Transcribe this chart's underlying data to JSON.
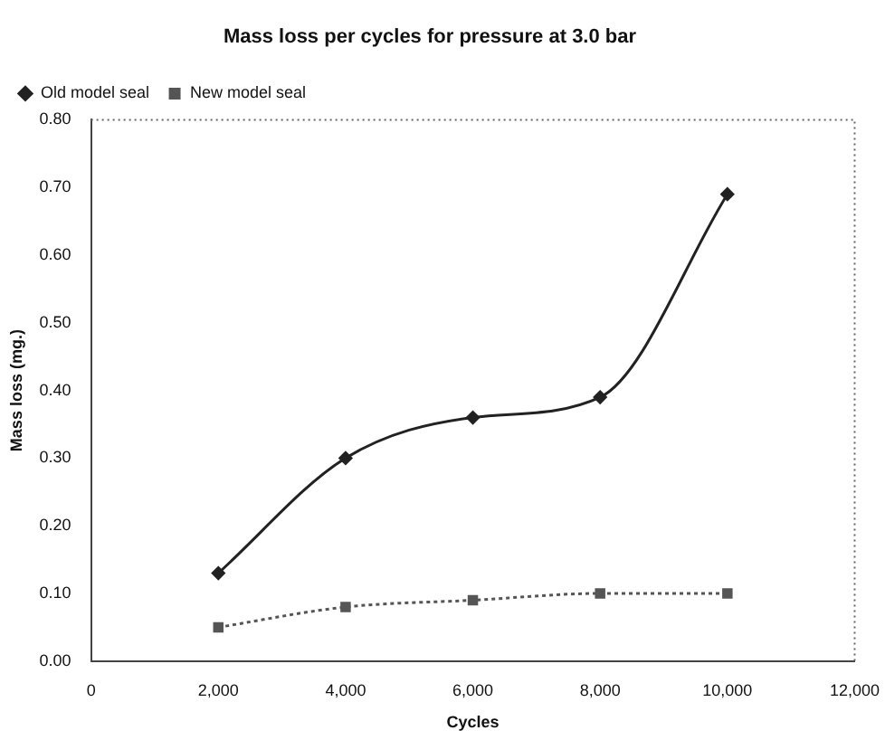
{
  "chart_data": {
    "type": "line",
    "title": "Mass loss per cycles for pressure at 3.0 bar",
    "xlabel": "Cycles",
    "ylabel": "Mass loss (mg.)",
    "x": [
      2000,
      4000,
      6000,
      8000,
      10000
    ],
    "series": [
      {
        "name": "Old model seal",
        "color": "#222222",
        "values": [
          0.13,
          0.3,
          0.36,
          0.39,
          0.69
        ],
        "marker": "diamond",
        "line_style": "solid"
      },
      {
        "name": "New model seal",
        "color": "#555555",
        "values": [
          0.05,
          0.08,
          0.09,
          0.1,
          0.1
        ],
        "marker": "square",
        "line_style": "dotted"
      }
    ],
    "xlim": [
      0,
      12000
    ],
    "xticks": [
      0,
      {
        "value": 2000,
        "label": "2,000"
      },
      {
        "value": 4000,
        "label": "4,000"
      },
      {
        "value": 6000,
        "label": "6,000"
      },
      {
        "value": 8000,
        "label": "8,000"
      },
      {
        "value": 10000,
        "label": "10,000"
      },
      {
        "value": 12000,
        "label": "12,000"
      }
    ],
    "ylim": [
      0,
      0.8
    ],
    "yticks": [
      {
        "value": 0,
        "label": "0.00"
      },
      {
        "value": 0.1,
        "label": "0.10"
      },
      {
        "value": 0.2,
        "label": "0.20"
      },
      {
        "value": 0.3,
        "label": "0.30"
      },
      {
        "value": 0.4,
        "label": "0.40"
      },
      {
        "value": 0.5,
        "label": "0.50"
      },
      {
        "value": 0.6,
        "label": "0.60"
      },
      {
        "value": 0.7,
        "label": "0.70"
      },
      {
        "value": 0.8,
        "label": "0.80"
      }
    ],
    "grid": false,
    "legend": "top left"
  }
}
